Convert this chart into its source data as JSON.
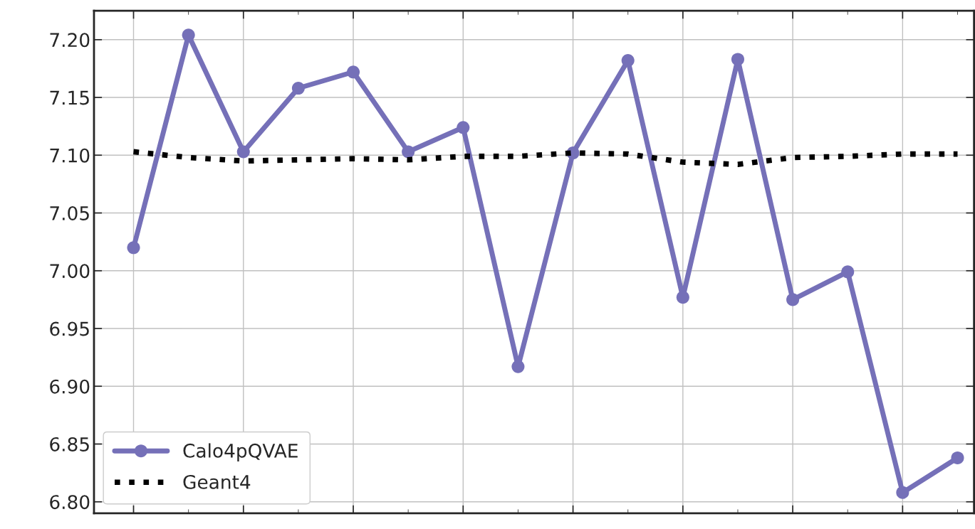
{
  "chart_data": {
    "type": "line",
    "categories": [
      null,
      null,
      null,
      null,
      null,
      null,
      null,
      null,
      null,
      null,
      null,
      null,
      null,
      null,
      null,
      null
    ],
    "series": [
      {
        "name": "Calo4pQVAE",
        "color": "#7570b8",
        "marker": "circle",
        "line_style": "solid",
        "values": [
          7.02,
          7.204,
          7.103,
          7.158,
          7.172,
          7.103,
          7.124,
          6.917,
          7.102,
          7.182,
          6.977,
          7.183,
          6.975,
          6.999,
          6.808,
          6.838
        ]
      },
      {
        "name": "Geant4",
        "color": "#000000",
        "marker": "none",
        "line_style": "dotted",
        "values": [
          7.103,
          7.098,
          7.095,
          7.096,
          7.097,
          7.096,
          7.099,
          7.099,
          7.102,
          7.101,
          7.094,
          7.092,
          7.098,
          7.099,
          7.101,
          7.101
        ]
      }
    ],
    "ylim": [
      6.79,
      7.225
    ],
    "yticks": [
      {
        "value": 6.8,
        "label": "6.80"
      },
      {
        "value": 6.85,
        "label": "6.85"
      },
      {
        "value": 6.9,
        "label": "6.90"
      },
      {
        "value": 6.95,
        "label": "6.95"
      },
      {
        "value": 7.0,
        "label": "7.00"
      },
      {
        "value": 7.05,
        "label": "7.05"
      },
      {
        "value": 7.1,
        "label": "7.10"
      },
      {
        "value": 7.15,
        "label": "7.15"
      },
      {
        "value": 7.2,
        "label": "7.20"
      }
    ],
    "grid": true,
    "legend": "bottom left",
    "tick_labels": "y"
  }
}
